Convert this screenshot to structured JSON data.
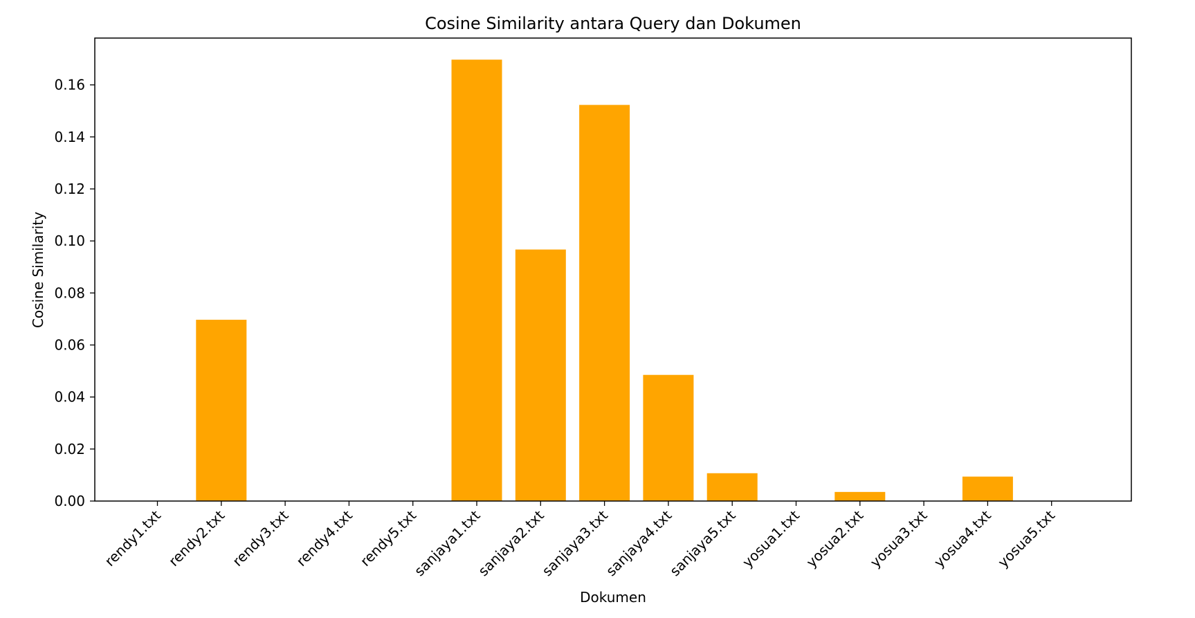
{
  "chart_data": {
    "type": "bar",
    "title": "Cosine Similarity antara Query dan Dokumen",
    "xlabel": "Dokumen",
    "ylabel": "Cosine Similarity",
    "categories": [
      "rendy1.txt",
      "rendy2.txt",
      "rendy3.txt",
      "rendy4.txt",
      "rendy5.txt",
      "sanjaya1.txt",
      "sanjaya2.txt",
      "sanjaya3.txt",
      "sanjaya4.txt",
      "sanjaya5.txt",
      "yosua1.txt",
      "yosua2.txt",
      "yosua3.txt",
      "yosua4.txt",
      "yosua5.txt"
    ],
    "values": [
      0.0,
      0.0697,
      0.0,
      0.0,
      0.0,
      0.1697,
      0.0967,
      0.1523,
      0.0485,
      0.0107,
      0.0,
      0.0035,
      0.0,
      0.0094,
      0.0
    ],
    "yticks": [
      "0.00",
      "0.02",
      "0.04",
      "0.06",
      "0.08",
      "0.10",
      "0.12",
      "0.14",
      "0.16"
    ],
    "ylim": [
      0,
      0.178
    ],
    "bar_color": "#ffa500",
    "grid": false,
    "legend": "none"
  }
}
